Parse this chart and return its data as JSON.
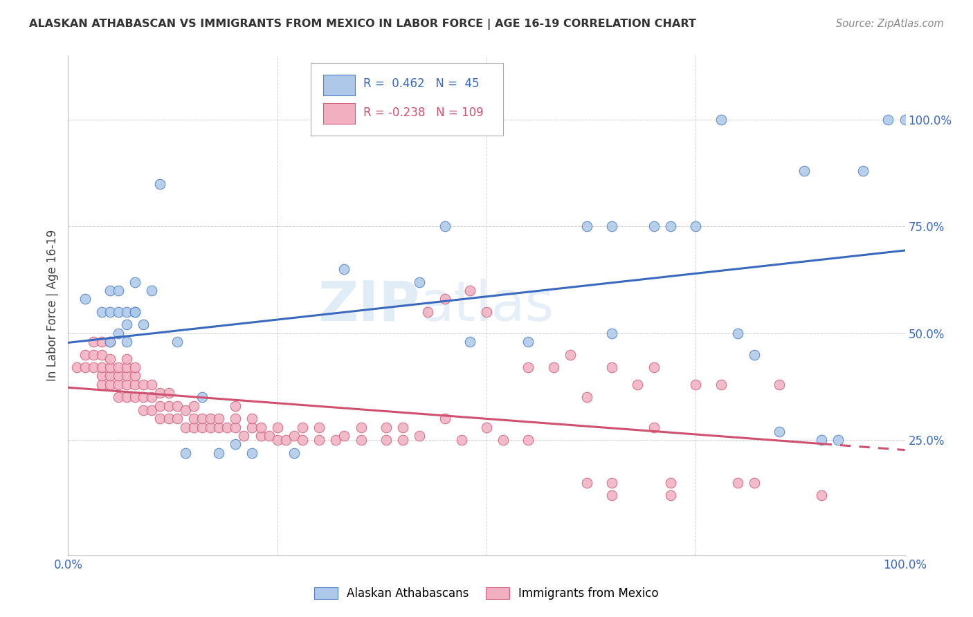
{
  "title": "ALASKAN ATHABASCAN VS IMMIGRANTS FROM MEXICO IN LABOR FORCE | AGE 16-19 CORRELATION CHART",
  "source_text": "Source: ZipAtlas.com",
  "ylabel": "In Labor Force | Age 16-19",
  "blue_R": 0.462,
  "blue_N": 45,
  "pink_R": -0.238,
  "pink_N": 109,
  "blue_legend": "Alaskan Athabascans",
  "pink_legend": "Immigrants from Mexico",
  "blue_color": "#adc8e8",
  "blue_edge_color": "#5080c8",
  "blue_line_color": "#3a6abf",
  "pink_color": "#f0b0c0",
  "pink_edge_color": "#d06080",
  "pink_line_color": "#d05070",
  "watermark_color": "#c8ddf0",
  "xlim": [
    0,
    1.0
  ],
  "ylim": [
    -0.02,
    1.15
  ],
  "ytick_positions": [
    0.25,
    0.5,
    0.75,
    1.0
  ],
  "ytick_labels": [
    "25.0%",
    "50.0%",
    "75.0%",
    "100.0%"
  ],
  "xtick_positions": [
    0.0,
    0.25,
    0.5,
    0.75,
    1.0
  ],
  "xtick_labels": [
    "0.0%",
    "",
    "",
    "",
    "100.0%"
  ],
  "blue_scatter_x": [
    0.02,
    0.04,
    0.05,
    0.05,
    0.05,
    0.06,
    0.06,
    0.06,
    0.07,
    0.07,
    0.07,
    0.08,
    0.08,
    0.09,
    0.1,
    0.11,
    0.14,
    0.16,
    0.18,
    0.2,
    0.22,
    0.27,
    0.33,
    0.42,
    0.45,
    0.48,
    0.55,
    0.62,
    0.65,
    0.65,
    0.7,
    0.72,
    0.75,
    0.78,
    0.8,
    0.82,
    0.85,
    0.88,
    0.9,
    0.92,
    0.95,
    0.98,
    1.0,
    0.08,
    0.13
  ],
  "blue_scatter_y": [
    0.58,
    0.55,
    0.48,
    0.55,
    0.6,
    0.5,
    0.55,
    0.6,
    0.48,
    0.52,
    0.55,
    0.62,
    0.55,
    0.52,
    0.6,
    0.85,
    0.22,
    0.35,
    0.22,
    0.24,
    0.22,
    0.22,
    0.65,
    0.62,
    0.75,
    0.48,
    0.48,
    0.75,
    0.5,
    0.75,
    0.75,
    0.75,
    0.75,
    1.0,
    0.5,
    0.45,
    0.27,
    0.88,
    0.25,
    0.25,
    0.88,
    1.0,
    1.0,
    0.55,
    0.48
  ],
  "pink_scatter_x": [
    0.01,
    0.02,
    0.02,
    0.03,
    0.03,
    0.03,
    0.04,
    0.04,
    0.04,
    0.04,
    0.04,
    0.05,
    0.05,
    0.05,
    0.05,
    0.05,
    0.06,
    0.06,
    0.06,
    0.06,
    0.07,
    0.07,
    0.07,
    0.07,
    0.07,
    0.08,
    0.08,
    0.08,
    0.08,
    0.09,
    0.09,
    0.09,
    0.1,
    0.1,
    0.1,
    0.11,
    0.11,
    0.11,
    0.12,
    0.12,
    0.12,
    0.13,
    0.13,
    0.14,
    0.14,
    0.15,
    0.15,
    0.15,
    0.16,
    0.16,
    0.17,
    0.17,
    0.18,
    0.18,
    0.19,
    0.2,
    0.2,
    0.2,
    0.21,
    0.22,
    0.22,
    0.23,
    0.23,
    0.24,
    0.25,
    0.25,
    0.26,
    0.27,
    0.28,
    0.28,
    0.3,
    0.3,
    0.32,
    0.33,
    0.35,
    0.35,
    0.38,
    0.38,
    0.4,
    0.4,
    0.42,
    0.43,
    0.45,
    0.45,
    0.47,
    0.48,
    0.5,
    0.5,
    0.52,
    0.55,
    0.55,
    0.58,
    0.6,
    0.62,
    0.62,
    0.65,
    0.65,
    0.65,
    0.68,
    0.7,
    0.7,
    0.72,
    0.72,
    0.75,
    0.78,
    0.8,
    0.82,
    0.85,
    0.9
  ],
  "pink_scatter_y": [
    0.42,
    0.42,
    0.45,
    0.42,
    0.45,
    0.48,
    0.38,
    0.4,
    0.42,
    0.45,
    0.48,
    0.38,
    0.4,
    0.42,
    0.44,
    0.48,
    0.35,
    0.38,
    0.4,
    0.42,
    0.35,
    0.38,
    0.4,
    0.42,
    0.44,
    0.35,
    0.38,
    0.4,
    0.42,
    0.32,
    0.35,
    0.38,
    0.32,
    0.35,
    0.38,
    0.3,
    0.33,
    0.36,
    0.3,
    0.33,
    0.36,
    0.3,
    0.33,
    0.28,
    0.32,
    0.28,
    0.3,
    0.33,
    0.28,
    0.3,
    0.28,
    0.3,
    0.28,
    0.3,
    0.28,
    0.28,
    0.3,
    0.33,
    0.26,
    0.28,
    0.3,
    0.26,
    0.28,
    0.26,
    0.25,
    0.28,
    0.25,
    0.26,
    0.25,
    0.28,
    0.25,
    0.28,
    0.25,
    0.26,
    0.25,
    0.28,
    0.25,
    0.28,
    0.25,
    0.28,
    0.26,
    0.55,
    0.3,
    0.58,
    0.25,
    0.6,
    0.55,
    0.28,
    0.25,
    0.42,
    0.25,
    0.42,
    0.45,
    0.35,
    0.15,
    0.42,
    0.12,
    0.15,
    0.38,
    0.28,
    0.42,
    0.12,
    0.15,
    0.38,
    0.38,
    0.15,
    0.15,
    0.38,
    0.12
  ]
}
